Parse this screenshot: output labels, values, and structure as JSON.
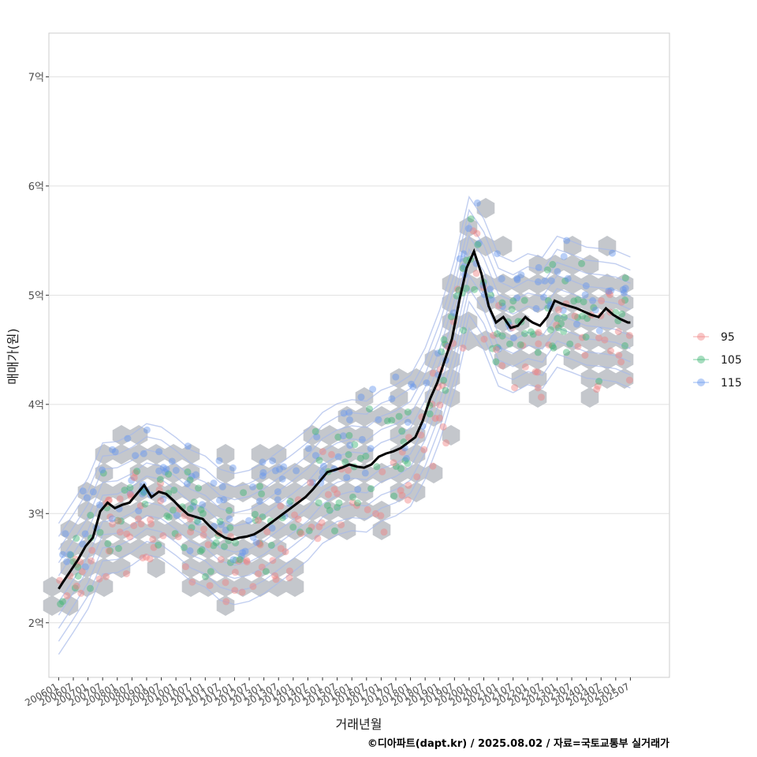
{
  "chart_data": {
    "type": "scatter",
    "xlabel": "거래년월",
    "ylabel": "매매가(원)",
    "caption": "©디아파트(dapt.kr) / 2025.08.02 / 자료=국토교통부 실거래가",
    "x_tick_labels": [
      "200601",
      "200607",
      "200701",
      "200707",
      "200801",
      "200807",
      "200901",
      "200907",
      "201001",
      "201007",
      "201101",
      "201107",
      "201201",
      "201207",
      "201301",
      "201307",
      "201401",
      "201407",
      "201501",
      "201507",
      "201601",
      "201607",
      "201701",
      "201707",
      "201801",
      "201807",
      "201901",
      "201907",
      "202001",
      "202007",
      "202101",
      "202107",
      "202201",
      "202207",
      "202301",
      "202307",
      "202401",
      "202407",
      "202501",
      "202507"
    ],
    "y_ticks": [
      {
        "value": 2,
        "label": "2억"
      },
      {
        "value": 3,
        "label": "3억"
      },
      {
        "value": 4,
        "label": "4억"
      },
      {
        "value": 5,
        "label": "5억"
      },
      {
        "value": 6,
        "label": "6억"
      },
      {
        "value": 7,
        "label": "7억"
      }
    ],
    "xlim": [
      "2005-09",
      "2026-11"
    ],
    "ylim": [
      1.5,
      7.4
    ],
    "y_unit": "억",
    "grid": true,
    "legend_position": "right",
    "legend": [
      {
        "name": "95",
        "color": "#f08080"
      },
      {
        "name": "105",
        "color": "#3cb371"
      },
      {
        "name": "115",
        "color": "#6495ed"
      }
    ],
    "layers": [
      "hexbin density",
      "2d density contours",
      "scatter by area",
      "moving average line"
    ],
    "moving_average": {
      "x": [
        "2006-01",
        "2006-03",
        "2006-06",
        "2006-09",
        "2006-12",
        "2007-03",
        "2007-06",
        "2007-09",
        "2007-12",
        "2008-03",
        "2008-06",
        "2008-09",
        "2008-12",
        "2009-03",
        "2009-06",
        "2009-09",
        "2009-12",
        "2010-03",
        "2010-06",
        "2010-09",
        "2010-12",
        "2011-03",
        "2011-06",
        "2011-09",
        "2011-12",
        "2012-03",
        "2012-06",
        "2012-09",
        "2012-12",
        "2013-03",
        "2013-06",
        "2013-09",
        "2013-12",
        "2014-03",
        "2014-06",
        "2014-09",
        "2014-12",
        "2015-03",
        "2015-06",
        "2015-09",
        "2015-12",
        "2016-03",
        "2016-06",
        "2016-09",
        "2016-12",
        "2017-03",
        "2017-06",
        "2017-09",
        "2017-12",
        "2018-03",
        "2018-06",
        "2018-09",
        "2018-12",
        "2019-03",
        "2019-06",
        "2019-09",
        "2019-12",
        "2020-03",
        "2020-06",
        "2020-09",
        "2020-12",
        "2021-03",
        "2021-06",
        "2021-09",
        "2021-12",
        "2022-01",
        "2022-03",
        "2022-06",
        "2022-09",
        "2022-12",
        "2023-03",
        "2023-06",
        "2023-09",
        "2023-12",
        "2024-03",
        "2024-06",
        "2024-09",
        "2024-12",
        "2025-03",
        "2025-06",
        "2025-07"
      ],
      "y": [
        2.31,
        2.38,
        2.48,
        2.58,
        2.7,
        2.78,
        3.02,
        3.1,
        3.05,
        3.08,
        3.1,
        3.18,
        3.26,
        3.15,
        3.2,
        3.18,
        3.12,
        3.05,
        2.99,
        2.97,
        2.95,
        2.88,
        2.82,
        2.78,
        2.76,
        2.78,
        2.79,
        2.81,
        2.85,
        2.9,
        2.95,
        3.0,
        3.05,
        3.1,
        3.15,
        3.22,
        3.3,
        3.38,
        3.4,
        3.42,
        3.45,
        3.43,
        3.42,
        3.45,
        3.52,
        3.55,
        3.57,
        3.6,
        3.65,
        3.7,
        3.85,
        4.05,
        4.2,
        4.4,
        4.6,
        4.95,
        5.25,
        5.4,
        5.2,
        4.9,
        4.75,
        4.8,
        4.7,
        4.72,
        4.8,
        4.78,
        4.75,
        4.72,
        4.8,
        4.95,
        4.92,
        4.9,
        4.88,
        4.85,
        4.82,
        4.8,
        4.88,
        4.82,
        4.78,
        4.75,
        4.75
      ],
      "color": "#000000"
    }
  }
}
